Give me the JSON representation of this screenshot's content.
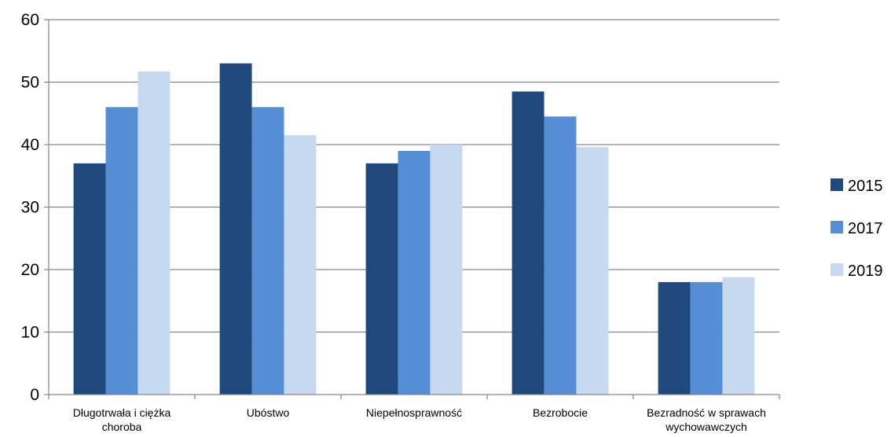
{
  "chart_data": {
    "type": "bar",
    "categories": [
      [
        "Długotrwała i ciężka",
        "choroba"
      ],
      [
        "Ubóstwo"
      ],
      [
        "Niepełnosprawność"
      ],
      [
        "Bezrobocie"
      ],
      [
        "Bezradność w sprawach",
        "wychowawczych"
      ]
    ],
    "series": [
      {
        "name": "2015",
        "color": "#1f497d",
        "values": [
          37,
          53,
          37,
          48.5,
          18
        ]
      },
      {
        "name": "2017",
        "color": "#558ed5",
        "values": [
          46,
          46,
          39,
          44.5,
          18
        ]
      },
      {
        "name": "2019",
        "color": "#c6d9f1",
        "values": [
          51.7,
          41.5,
          40,
          39.6,
          18.8
        ]
      }
    ],
    "ylim": [
      0,
      60
    ],
    "yticks": [
      0,
      10,
      20,
      30,
      40,
      50,
      60
    ],
    "grid": true,
    "legend_position": "right",
    "title": "",
    "xlabel": "",
    "ylabel": ""
  }
}
